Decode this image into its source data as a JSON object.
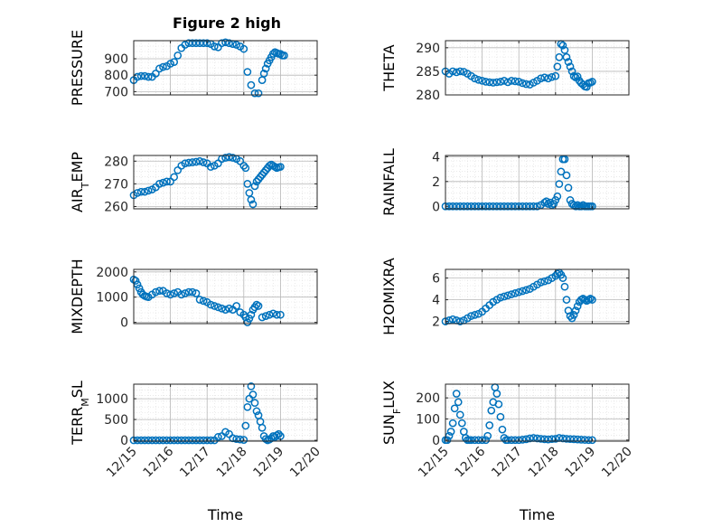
{
  "title": "Figure 2 high",
  "colors": {
    "marker": "#0072BD",
    "axis": "#262626",
    "grid": "#b8b8b8"
  },
  "chart_data": [
    {
      "type": "scatter",
      "ylabel": "PRESSURE",
      "xlabel": "",
      "title": "Figure 2 high",
      "xlim": [
        0,
        5
      ],
      "ylim": [
        680,
        1010
      ],
      "yticks": [
        700,
        800,
        900
      ],
      "x": [
        0.0,
        0.1,
        0.2,
        0.3,
        0.4,
        0.5,
        0.6,
        0.7,
        0.8,
        0.9,
        1.0,
        1.1,
        1.2,
        1.3,
        1.4,
        1.5,
        1.6,
        1.7,
        1.8,
        1.9,
        2.0,
        2.1,
        2.2,
        2.3,
        2.4,
        2.5,
        2.6,
        2.7,
        2.8,
        2.9,
        3.0,
        3.1,
        3.2,
        3.3,
        3.4,
        3.5,
        3.55,
        3.6,
        3.65,
        3.7,
        3.75,
        3.8,
        3.85,
        3.9,
        3.95,
        4.0,
        4.05,
        4.1
      ],
      "y": [
        770,
        790,
        795,
        795,
        790,
        790,
        810,
        840,
        850,
        855,
        870,
        880,
        920,
        965,
        985,
        995,
        995,
        995,
        995,
        995,
        995,
        990,
        975,
        970,
        995,
        1000,
        995,
        990,
        985,
        975,
        960,
        820,
        740,
        690,
        690,
        770,
        810,
        840,
        870,
        890,
        910,
        930,
        940,
        935,
        930,
        930,
        920,
        920
      ]
    },
    {
      "type": "scatter",
      "ylabel": "THETA",
      "xlabel": "",
      "xlim": [
        0,
        5
      ],
      "ylim": [
        280,
        291.5
      ],
      "yticks": [
        280,
        285,
        290
      ],
      "x": [
        0.0,
        0.1,
        0.2,
        0.3,
        0.4,
        0.5,
        0.6,
        0.7,
        0.8,
        0.9,
        1.0,
        1.1,
        1.2,
        1.3,
        1.4,
        1.5,
        1.6,
        1.7,
        1.8,
        1.9,
        2.0,
        2.1,
        2.2,
        2.3,
        2.4,
        2.5,
        2.6,
        2.7,
        2.8,
        2.9,
        3.0,
        3.05,
        3.1,
        3.15,
        3.2,
        3.25,
        3.3,
        3.35,
        3.4,
        3.45,
        3.5,
        3.55,
        3.6,
        3.65,
        3.7,
        3.75,
        3.8,
        3.85,
        3.9,
        3.95,
        4.0
      ],
      "y": [
        285,
        284.5,
        285,
        284.8,
        285,
        284.9,
        284.5,
        284,
        283.5,
        283.2,
        283,
        282.8,
        282.7,
        282.6,
        282.7,
        282.8,
        283,
        282.7,
        283,
        282.9,
        282.8,
        282.5,
        282.3,
        282.2,
        282.6,
        283,
        283.5,
        283.7,
        283.5,
        283.8,
        284,
        286,
        288,
        290.8,
        290.5,
        289.5,
        288,
        287,
        286,
        285,
        284,
        283.7,
        283.9,
        283,
        282.5,
        282.2,
        281.8,
        281.7,
        282.5,
        282.6,
        282.8
      ]
    },
    {
      "type": "scatter",
      "ylabel": "AIR_TEMP",
      "xlabel": "",
      "xlim": [
        0,
        5
      ],
      "ylim": [
        259,
        282.5
      ],
      "yticks": [
        260,
        270,
        280
      ],
      "x": [
        0.0,
        0.1,
        0.2,
        0.3,
        0.4,
        0.5,
        0.6,
        0.7,
        0.8,
        0.9,
        1.0,
        1.1,
        1.2,
        1.3,
        1.4,
        1.5,
        1.6,
        1.7,
        1.8,
        1.9,
        2.0,
        2.1,
        2.2,
        2.3,
        2.4,
        2.5,
        2.6,
        2.7,
        2.8,
        2.9,
        3.0,
        3.05,
        3.1,
        3.15,
        3.2,
        3.25,
        3.3,
        3.35,
        3.4,
        3.45,
        3.5,
        3.55,
        3.6,
        3.65,
        3.7,
        3.75,
        3.8,
        3.85,
        3.9,
        3.95,
        4.0
      ],
      "y": [
        265,
        266,
        266.5,
        266.5,
        267,
        267.5,
        268.5,
        270,
        270.5,
        271,
        271,
        273,
        276,
        278,
        279,
        279.3,
        279.5,
        279.7,
        280,
        279.5,
        279,
        277.5,
        278,
        279,
        281,
        281.5,
        281.8,
        281.5,
        281,
        280,
        278,
        277,
        270,
        266,
        263,
        261,
        269,
        271,
        272,
        273,
        274,
        275,
        276,
        277,
        278,
        278.5,
        278,
        277.5,
        277,
        277.3,
        277.5
      ]
    },
    {
      "type": "scatter",
      "ylabel": "RAINFALL",
      "xlabel": "",
      "xlim": [
        0,
        5
      ],
      "ylim": [
        -0.2,
        4.1
      ],
      "yticks": [
        0,
        2,
        4
      ],
      "x": [
        0.0,
        0.1,
        0.2,
        0.3,
        0.4,
        0.5,
        0.6,
        0.7,
        0.8,
        0.9,
        1.0,
        1.1,
        1.2,
        1.3,
        1.4,
        1.5,
        1.6,
        1.7,
        1.8,
        1.9,
        2.0,
        2.1,
        2.2,
        2.3,
        2.4,
        2.5,
        2.6,
        2.7,
        2.75,
        2.8,
        2.85,
        2.9,
        2.95,
        3.0,
        3.05,
        3.1,
        3.15,
        3.2,
        3.25,
        3.3,
        3.35,
        3.4,
        3.45,
        3.5,
        3.55,
        3.6,
        3.65,
        3.7,
        3.75,
        3.8,
        3.85,
        3.9,
        3.95,
        4.0
      ],
      "y": [
        0,
        0,
        0,
        0,
        0,
        0,
        0,
        0,
        0,
        0,
        0,
        0,
        0,
        0,
        0,
        0,
        0,
        0,
        0,
        0,
        0,
        0,
        0,
        0,
        0,
        0,
        0.1,
        0.3,
        0.4,
        0.2,
        0.3,
        0.1,
        0.2,
        0.5,
        0.8,
        1.8,
        2.8,
        3.8,
        3.8,
        2.5,
        1.5,
        0.5,
        0.2,
        0.1,
        0,
        0.1,
        0,
        0,
        0.1,
        0,
        0,
        0,
        0,
        0
      ]
    },
    {
      "type": "scatter",
      "ylabel": "MIXDEPTH",
      "xlabel": "",
      "xlim": [
        0,
        5
      ],
      "ylim": [
        -50,
        2100
      ],
      "yticks": [
        0,
        1000,
        2000
      ],
      "x": [
        0.0,
        0.05,
        0.1,
        0.15,
        0.2,
        0.25,
        0.3,
        0.35,
        0.4,
        0.5,
        0.6,
        0.7,
        0.8,
        0.9,
        1.0,
        1.1,
        1.2,
        1.3,
        1.4,
        1.5,
        1.6,
        1.7,
        1.8,
        1.9,
        2.0,
        2.1,
        2.2,
        2.3,
        2.4,
        2.5,
        2.6,
        2.7,
        2.8,
        2.9,
        3.0,
        3.05,
        3.1,
        3.15,
        3.2,
        3.25,
        3.3,
        3.35,
        3.4,
        3.5,
        3.6,
        3.7,
        3.8,
        3.9,
        4.0
      ],
      "y": [
        1700,
        1650,
        1500,
        1350,
        1200,
        1100,
        1050,
        1020,
        1000,
        1100,
        1200,
        1250,
        1250,
        1150,
        1100,
        1150,
        1200,
        1100,
        1150,
        1200,
        1200,
        1150,
        900,
        850,
        800,
        700,
        650,
        600,
        550,
        500,
        550,
        500,
        650,
        400,
        300,
        200,
        0,
        150,
        300,
        500,
        600,
        700,
        650,
        200,
        250,
        300,
        350,
        300,
        300
      ]
    },
    {
      "type": "scatter",
      "ylabel": "H2OMIXRA",
      "xlabel": "",
      "xlim": [
        0,
        5
      ],
      "ylim": [
        1.8,
        6.8
      ],
      "yticks": [
        2,
        4,
        6
      ],
      "x": [
        0.0,
        0.1,
        0.2,
        0.3,
        0.4,
        0.5,
        0.6,
        0.7,
        0.8,
        0.9,
        1.0,
        1.1,
        1.2,
        1.3,
        1.4,
        1.5,
        1.6,
        1.7,
        1.8,
        1.9,
        2.0,
        2.1,
        2.2,
        2.3,
        2.4,
        2.5,
        2.6,
        2.7,
        2.8,
        2.9,
        3.0,
        3.05,
        3.1,
        3.15,
        3.2,
        3.25,
        3.3,
        3.35,
        3.4,
        3.45,
        3.5,
        3.55,
        3.6,
        3.65,
        3.7,
        3.75,
        3.8,
        3.85,
        3.9,
        3.95,
        4.0
      ],
      "y": [
        2,
        2.1,
        2.2,
        2.1,
        2.0,
        2.1,
        2.3,
        2.5,
        2.6,
        2.7,
        2.9,
        3.2,
        3.5,
        3.8,
        4.0,
        4.2,
        4.3,
        4.4,
        4.5,
        4.6,
        4.7,
        4.8,
        4.9,
        5.0,
        5.2,
        5.4,
        5.6,
        5.7,
        5.8,
        6.0,
        6.2,
        6.4,
        6.5,
        6.3,
        6.0,
        5.2,
        4.0,
        3.0,
        2.5,
        2.3,
        2.6,
        3.0,
        3.4,
        3.8,
        4.0,
        4.1,
        4.0,
        3.9,
        4.0,
        4.1,
        4.0
      ]
    },
    {
      "type": "scatter",
      "ylabel": "TERR_MSL",
      "xlabel": "Time",
      "xlim": [
        0,
        5
      ],
      "ylim": [
        -20,
        1350
      ],
      "yticks": [
        0,
        500,
        1000
      ],
      "xticklabels": [
        "12/15",
        "12/16",
        "12/17",
        "12/18",
        "12/19",
        "12/20"
      ],
      "x": [
        0.0,
        0.1,
        0.2,
        0.3,
        0.4,
        0.5,
        0.6,
        0.7,
        0.8,
        0.9,
        1.0,
        1.1,
        1.2,
        1.3,
        1.4,
        1.5,
        1.6,
        1.7,
        1.8,
        1.9,
        2.0,
        2.1,
        2.2,
        2.3,
        2.4,
        2.5,
        2.6,
        2.7,
        2.8,
        2.9,
        3.0,
        3.05,
        3.1,
        3.15,
        3.2,
        3.25,
        3.3,
        3.35,
        3.4,
        3.45,
        3.5,
        3.55,
        3.6,
        3.65,
        3.7,
        3.75,
        3.8,
        3.85,
        3.9,
        3.95,
        4.0
      ],
      "y": [
        0,
        0,
        0,
        0,
        0,
        0,
        0,
        0,
        0,
        0,
        0,
        0,
        0,
        0,
        0,
        0,
        0,
        0,
        0,
        0,
        0,
        0,
        0,
        80,
        100,
        200,
        150,
        50,
        30,
        20,
        10,
        350,
        800,
        1000,
        1300,
        1100,
        900,
        700,
        600,
        450,
        300,
        100,
        30,
        0,
        20,
        50,
        100,
        80,
        120,
        150,
        100
      ]
    },
    {
      "type": "scatter",
      "ylabel": "SUN_FLUX",
      "xlabel": "Time",
      "xlim": [
        0,
        5
      ],
      "ylim": [
        -5,
        265
      ],
      "yticks": [
        0,
        100,
        200
      ],
      "xticklabels": [
        "12/15",
        "12/16",
        "12/17",
        "12/18",
        "12/19",
        "12/20"
      ],
      "x": [
        0.0,
        0.05,
        0.1,
        0.15,
        0.2,
        0.25,
        0.3,
        0.35,
        0.4,
        0.45,
        0.5,
        0.55,
        0.6,
        0.65,
        0.7,
        0.8,
        0.9,
        1.0,
        1.1,
        1.15,
        1.2,
        1.25,
        1.3,
        1.35,
        1.4,
        1.45,
        1.5,
        1.55,
        1.6,
        1.65,
        1.7,
        1.8,
        1.9,
        2.0,
        2.1,
        2.2,
        2.3,
        2.4,
        2.5,
        2.6,
        2.7,
        2.8,
        2.9,
        3.0,
        3.1,
        3.2,
        3.3,
        3.4,
        3.5,
        3.6,
        3.7,
        3.8,
        3.9,
        4.0
      ],
      "y": [
        0,
        0,
        20,
        40,
        80,
        150,
        220,
        180,
        120,
        80,
        40,
        10,
        0,
        0,
        0,
        0,
        0,
        0,
        0,
        20,
        70,
        140,
        180,
        250,
        220,
        170,
        110,
        50,
        10,
        0,
        0,
        0,
        0,
        0,
        2,
        4,
        8,
        10,
        8,
        6,
        4,
        3,
        5,
        6,
        10,
        8,
        6,
        5,
        4,
        3,
        2,
        1,
        0,
        0
      ]
    }
  ]
}
